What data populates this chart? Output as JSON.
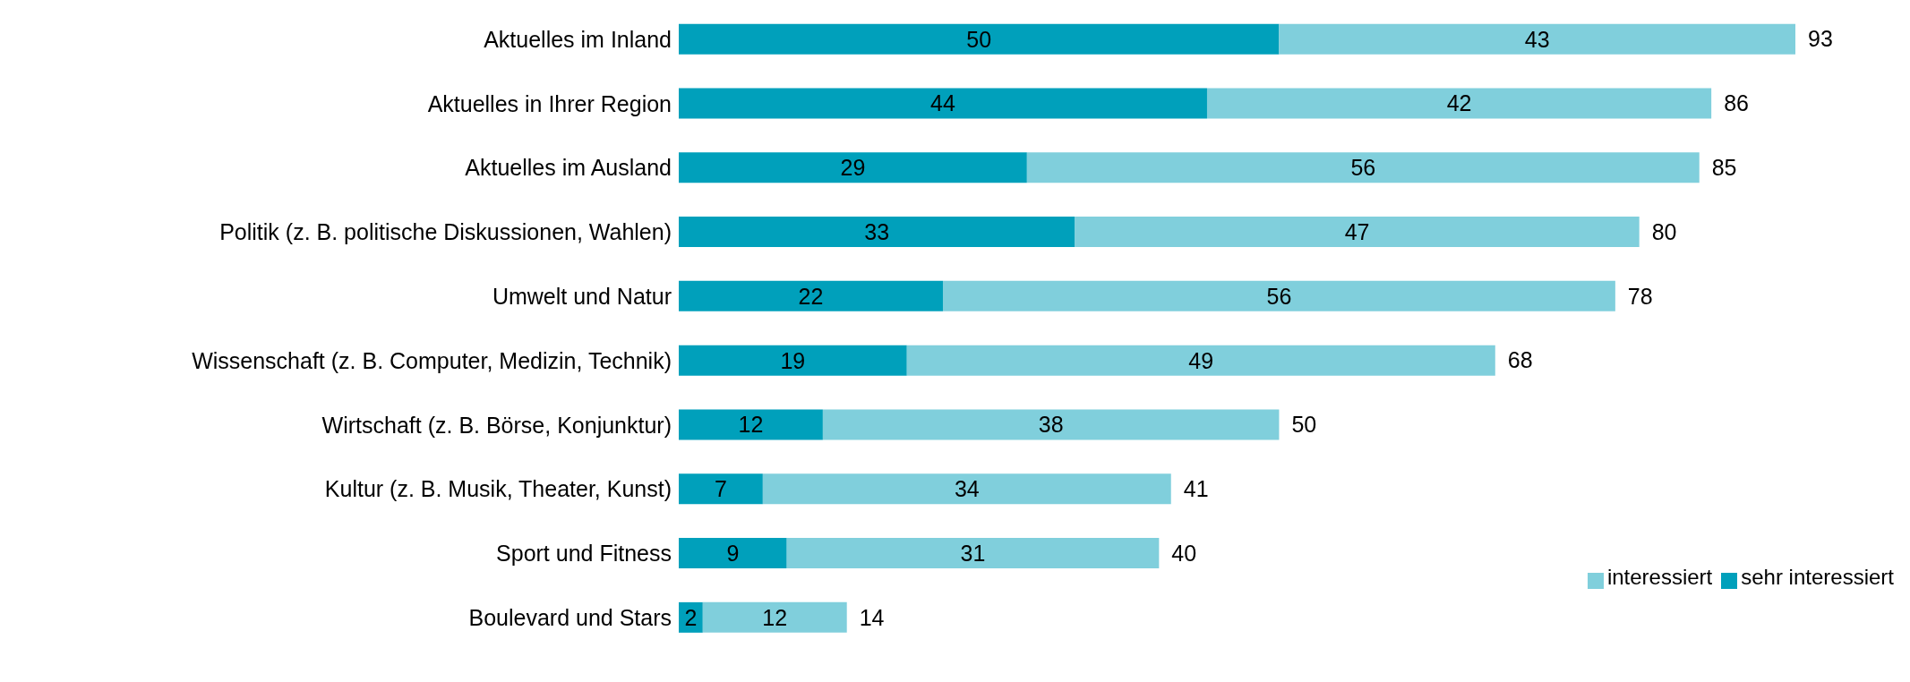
{
  "chart_data": {
    "type": "bar",
    "orientation": "horizontal",
    "stacked": true,
    "categories": [
      "Aktuelles im Inland",
      "Aktuelles in Ihrer Region",
      "Aktuelles im Ausland",
      "Politik (z. B. politische Diskussionen, Wahlen)",
      "Umwelt und Natur",
      "Wissenschaft (z. B. Computer, Medizin, Technik)",
      "Wirtschaft (z. B. Börse, Konjunktur)",
      "Kultur (z. B. Musik, Theater, Kunst)",
      "Sport und Fitness",
      "Boulevard und Stars"
    ],
    "series": [
      {
        "name": "sehr interessiert",
        "color": "#00a0bb",
        "values": [
          50,
          44,
          29,
          33,
          22,
          19,
          12,
          7,
          9,
          2
        ]
      },
      {
        "name": "interessiert",
        "color": "#80cfdc",
        "values": [
          43,
          42,
          56,
          47,
          56,
          49,
          38,
          34,
          31,
          12
        ]
      }
    ],
    "totals": [
      "93",
      "86",
      "85",
      "80",
      "78",
      "68",
      "50",
      "41",
      "40",
      "14"
    ],
    "data_labels": true,
    "legend": "bottom right",
    "grid": false
  }
}
